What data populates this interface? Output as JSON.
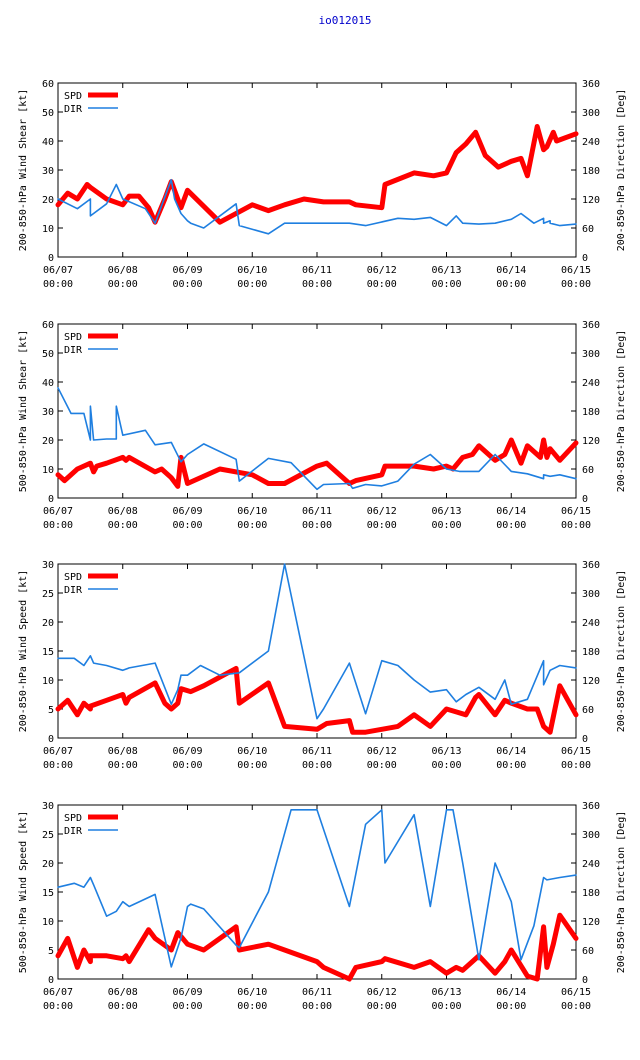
{
  "title": "io012015",
  "x_ticks": [
    {
      "date": "06/07",
      "time": "00:00"
    },
    {
      "date": "06/08",
      "time": "00:00"
    },
    {
      "date": "06/09",
      "time": "00:00"
    },
    {
      "date": "06/10",
      "time": "00:00"
    },
    {
      "date": "06/11",
      "time": "00:00"
    },
    {
      "date": "06/12",
      "time": "00:00"
    },
    {
      "date": "06/13",
      "time": "00:00"
    },
    {
      "date": "06/14",
      "time": "00:00"
    },
    {
      "date": "06/15",
      "time": "00:00"
    }
  ],
  "colors": {
    "spd": "#ff0000",
    "dir": "#1f7fe0"
  },
  "chart_data": [
    {
      "type": "line",
      "ylabel": "200-850-hPa Wind Shear [kt]",
      "y2label": "200-850-hPa Direction [Deg]",
      "ylim": [
        0,
        60
      ],
      "yticks": [
        0,
        10,
        20,
        30,
        40,
        50,
        60
      ],
      "y2lim": [
        0,
        360
      ],
      "y2ticks": [
        0,
        60,
        120,
        180,
        240,
        300,
        360
      ],
      "xlim": [
        0,
        8
      ],
      "legend": [
        "SPD",
        "DIR"
      ],
      "series": [
        {
          "name": "SPD",
          "axis": "left",
          "x": [
            0,
            0.15,
            0.3,
            0.45,
            0.5,
            0.75,
            1.0,
            1.1,
            1.25,
            1.4,
            1.5,
            1.65,
            1.75,
            1.9,
            2.0,
            2.5,
            3.0,
            3.25,
            3.5,
            3.8,
            4.1,
            4.5,
            4.6,
            5.0,
            5.05,
            5.5,
            5.8,
            6.0,
            6.15,
            6.3,
            6.45,
            6.6,
            6.8,
            7.0,
            7.15,
            7.25,
            7.4,
            7.5,
            7.55,
            7.65,
            7.7,
            8.0
          ],
          "values": [
            18,
            22,
            20,
            25,
            24,
            20,
            18,
            21,
            21,
            17,
            12,
            20,
            26,
            17,
            23,
            12,
            18,
            16,
            18,
            20,
            19,
            19,
            18,
            17,
            25,
            29,
            28,
            29,
            36,
            39,
            43,
            35,
            31,
            33,
            34,
            28,
            45,
            37,
            38,
            43,
            40,
            42.5
          ]
        },
        {
          "name": "DIR",
          "axis": "right",
          "x": [
            0,
            0.3,
            0.5,
            0.5,
            0.75,
            0.9,
            1.0,
            1.35,
            1.5,
            1.75,
            1.8,
            1.9,
            2.0,
            2.05,
            2.25,
            2.75,
            2.8,
            3.25,
            3.5,
            4.5,
            4.75,
            5.25,
            5.5,
            5.75,
            6.0,
            6.15,
            6.25,
            6.5,
            6.75,
            7.0,
            7.15,
            7.35,
            7.5,
            7.5,
            7.6,
            7.6,
            7.75,
            8.0
          ],
          "values": [
            120,
            100,
            120,
            85,
            110,
            150,
            120,
            100,
            70,
            160,
            120,
            90,
            75,
            70,
            60,
            110,
            65,
            48,
            70,
            70,
            65,
            80,
            78,
            82,
            65,
            85,
            70,
            68,
            70,
            78,
            90,
            70,
            80,
            70,
            75,
            70,
            65,
            68
          ]
        }
      ]
    },
    {
      "type": "line",
      "ylabel": "500-850-hPa Wind Shear [kt]",
      "y2label": "200-850-hPa Direction [Deg]",
      "ylim": [
        0,
        60
      ],
      "yticks": [
        0,
        10,
        20,
        30,
        40,
        50,
        60
      ],
      "y2lim": [
        0,
        360
      ],
      "y2ticks": [
        0,
        60,
        120,
        180,
        240,
        300,
        360
      ],
      "xlim": [
        0,
        8
      ],
      "legend": [
        "SPD",
        "DIR"
      ],
      "series": [
        {
          "name": "SPD",
          "axis": "left",
          "x": [
            0,
            0.1,
            0.3,
            0.5,
            0.55,
            0.6,
            0.75,
            1.0,
            1.05,
            1.1,
            1.5,
            1.6,
            1.75,
            1.85,
            1.9,
            2.0,
            2.5,
            3.0,
            3.25,
            3.5,
            4.0,
            4.15,
            4.5,
            4.6,
            5.0,
            5.05,
            5.5,
            5.8,
            6.0,
            6.1,
            6.25,
            6.4,
            6.5,
            6.75,
            6.9,
            7.0,
            7.15,
            7.25,
            7.45,
            7.5,
            7.55,
            7.6,
            7.75,
            8.0
          ],
          "values": [
            8,
            6,
            10,
            12,
            9,
            11,
            12,
            14,
            13,
            14,
            9,
            10,
            7,
            4,
            14,
            5,
            10,
            8,
            5,
            5,
            11,
            12,
            5,
            6,
            8,
            11,
            11,
            10,
            11,
            10,
            14,
            15,
            18,
            13,
            15,
            20,
            12,
            18,
            14,
            20,
            14,
            17,
            13,
            19
          ]
        },
        {
          "name": "DIR",
          "axis": "right",
          "x": [
            0,
            0.2,
            0.4,
            0.5,
            0.5,
            0.55,
            0.75,
            0.9,
            0.9,
            1.0,
            1.35,
            1.5,
            1.75,
            1.9,
            2.0,
            2.25,
            2.75,
            2.8,
            3.25,
            3.6,
            4.0,
            4.1,
            4.5,
            4.55,
            4.75,
            5.0,
            5.25,
            5.5,
            5.75,
            6.0,
            6.2,
            6.5,
            6.75,
            7.0,
            7.25,
            7.5,
            7.5,
            7.6,
            7.75,
            8.0
          ],
          "values": [
            228,
            175,
            175,
            120,
            190,
            120,
            122,
            122,
            190,
            130,
            140,
            110,
            115,
            75,
            90,
            112,
            80,
            35,
            82,
            73,
            18,
            28,
            30,
            20,
            28,
            25,
            35,
            70,
            90,
            60,
            55,
            55,
            90,
            55,
            50,
            40,
            48,
            45,
            48,
            40
          ]
        }
      ]
    },
    {
      "type": "line",
      "ylabel": "200-850-hPa Wind Speed [kt]",
      "y2label": "200-850-hPa Direction [Deg]",
      "ylim": [
        0,
        30
      ],
      "yticks": [
        0,
        5,
        10,
        15,
        20,
        25,
        30
      ],
      "y2lim": [
        0,
        360
      ],
      "y2ticks": [
        0,
        60,
        120,
        180,
        240,
        300,
        360
      ],
      "xlim": [
        0,
        8
      ],
      "legend": [
        "SPD",
        "DIR"
      ],
      "series": [
        {
          "name": "SPD",
          "axis": "left",
          "x": [
            0,
            0.15,
            0.3,
            0.4,
            0.5,
            0.5,
            0.75,
            1.0,
            1.05,
            1.1,
            1.5,
            1.65,
            1.75,
            1.85,
            1.9,
            2.05,
            2.25,
            2.75,
            2.8,
            3.25,
            3.5,
            4.0,
            4.15,
            4.5,
            4.55,
            4.75,
            5.0,
            5.25,
            5.5,
            5.75,
            6.0,
            6.15,
            6.3,
            6.45,
            6.5,
            6.75,
            6.9,
            7.0,
            7.25,
            7.4,
            7.5,
            7.6,
            7.75,
            8.0
          ],
          "values": [
            5,
            6.5,
            4,
            6,
            5,
            5.5,
            6.5,
            7.5,
            6,
            7,
            9.5,
            6,
            5,
            6,
            8.5,
            8,
            9,
            12,
            6,
            9.5,
            2,
            1.5,
            2.5,
            3,
            1,
            1,
            1.5,
            2,
            4,
            2,
            5,
            4.5,
            4,
            7,
            7.5,
            4,
            6.5,
            6,
            5,
            5,
            2,
            1,
            9,
            4
          ]
        },
        {
          "name": "DIR",
          "axis": "right",
          "x": [
            0,
            0.25,
            0.4,
            0.5,
            0.55,
            0.75,
            1.0,
            1.1,
            1.5,
            1.75,
            1.85,
            1.9,
            2.0,
            2.2,
            2.5,
            2.8,
            3.25,
            3.5,
            4.0,
            4.1,
            4.5,
            4.75,
            5.0,
            5.25,
            5.5,
            5.75,
            6.0,
            6.15,
            6.3,
            6.5,
            6.75,
            6.9,
            7.0,
            7.25,
            7.5,
            7.5,
            7.6,
            7.75,
            8.0
          ],
          "values": [
            165,
            165,
            150,
            170,
            155,
            150,
            140,
            145,
            155,
            70,
            100,
            130,
            130,
            150,
            130,
            135,
            180,
            360,
            40,
            60,
            155,
            50,
            160,
            150,
            120,
            95,
            100,
            75,
            90,
            105,
            80,
            120,
            70,
            80,
            160,
            110,
            140,
            150,
            145
          ]
        }
      ]
    },
    {
      "type": "line",
      "ylabel": "500-850-hPa Wind Speed [kt]",
      "y2label": "200-850-hPa Direction [Deg]",
      "ylim": [
        0,
        30
      ],
      "yticks": [
        0,
        5,
        10,
        15,
        20,
        25,
        30
      ],
      "y2lim": [
        0,
        360
      ],
      "y2ticks": [
        0,
        60,
        120,
        180,
        240,
        300,
        360
      ],
      "xlim": [
        0,
        8
      ],
      "legend": [
        "SPD",
        "DIR"
      ],
      "series": [
        {
          "name": "SPD",
          "axis": "left",
          "x": [
            0,
            0.15,
            0.3,
            0.4,
            0.5,
            0.5,
            0.75,
            1.0,
            1.05,
            1.1,
            1.4,
            1.5,
            1.75,
            1.85,
            2.0,
            2.25,
            2.75,
            2.8,
            3.25,
            3.5,
            4.0,
            4.1,
            4.5,
            4.6,
            5.0,
            5.05,
            5.5,
            5.75,
            6.0,
            6.15,
            6.25,
            6.5,
            6.75,
            6.9,
            7.0,
            7.25,
            7.4,
            7.5,
            7.55,
            7.65,
            7.75,
            8.0
          ],
          "values": [
            4,
            7,
            2,
            5,
            3,
            4,
            4,
            3.5,
            4,
            3,
            8.5,
            7,
            5,
            8,
            6,
            5,
            9,
            5,
            6,
            5,
            3,
            2,
            0,
            2,
            3,
            3.5,
            2,
            3,
            1,
            2,
            1.5,
            4,
            1,
            3,
            5,
            0.5,
            0,
            9,
            2,
            6,
            11,
            7
          ]
        },
        {
          "name": "DIR",
          "axis": "right",
          "x": [
            0,
            0.25,
            0.4,
            0.5,
            0.55,
            0.75,
            0.9,
            1.0,
            1.1,
            1.5,
            1.75,
            1.9,
            2.0,
            2.05,
            2.25,
            2.75,
            2.8,
            3.25,
            3.6,
            4.0,
            4.5,
            4.75,
            5.0,
            5.05,
            5.5,
            5.75,
            6.0,
            6.1,
            6.25,
            6.5,
            6.75,
            7.0,
            7.15,
            7.35,
            7.5,
            7.55,
            7.75,
            8.0
          ],
          "values": [
            190,
            198,
            190,
            210,
            195,
            130,
            140,
            160,
            150,
            175,
            25,
            85,
            150,
            155,
            145,
            70,
            65,
            180,
            350,
            350,
            150,
            320,
            350,
            240,
            340,
            150,
            350,
            350,
            240,
            40,
            240,
            160,
            40,
            110,
            210,
            205,
            210,
            215
          ]
        }
      ]
    }
  ]
}
